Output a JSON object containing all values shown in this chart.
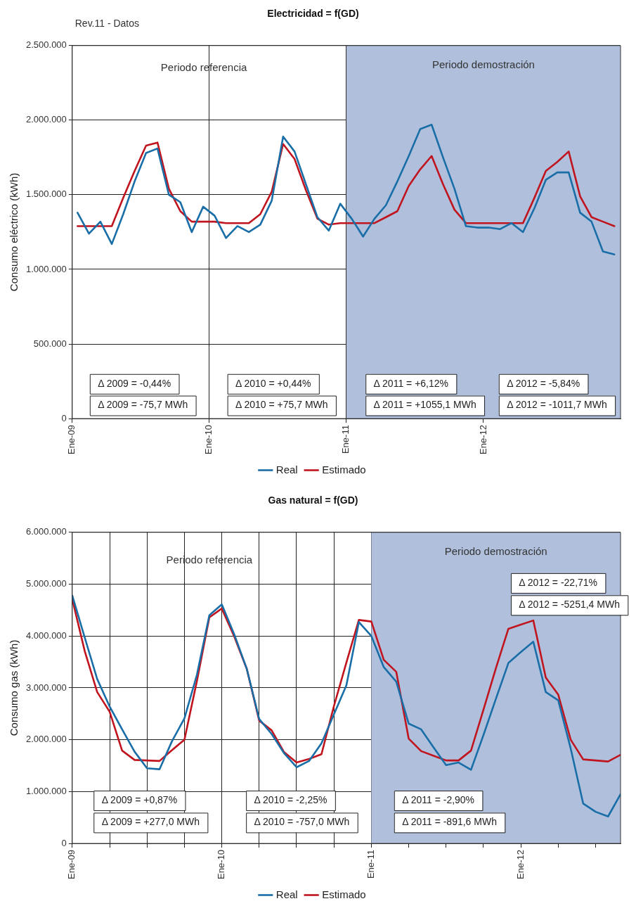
{
  "chart_data": [
    {
      "type": "line",
      "title": "Electricidad = f(GD)",
      "ylabel": "Consumo eléctrico (kWh)",
      "legend": "bottom",
      "grid": true,
      "marker": "none",
      "line_style": "solid",
      "x": [
        "2009-01-15",
        "2009-02-15",
        "2009-03-15",
        "2009-04-15",
        "2009-05-15",
        "2009-06-15",
        "2009-07-15",
        "2009-08-15",
        "2009-09-15",
        "2009-10-15",
        "2009-11-15",
        "2009-12-15",
        "2010-01-15",
        "2010-02-15",
        "2010-03-15",
        "2010-04-15",
        "2010-05-15",
        "2010-06-15",
        "2010-07-15",
        "2010-08-15",
        "2010-09-15",
        "2010-10-15",
        "2010-11-15",
        "2010-12-15",
        "2011-01-15",
        "2011-02-15",
        "2011-03-15",
        "2011-04-15",
        "2011-05-15",
        "2011-06-15",
        "2011-07-15",
        "2011-08-15",
        "2011-09-15",
        "2011-10-15",
        "2011-11-15",
        "2011-12-15",
        "2012-01-15",
        "2012-02-15",
        "2012-03-15",
        "2012-04-15",
        "2012-05-15",
        "2012-06-15",
        "2012-07-15",
        "2012-08-15",
        "2012-09-15",
        "2012-10-15",
        "2012-11-15",
        "2012-12-15"
      ],
      "xlim": [
        "2009-01",
        "2013-01"
      ],
      "xticks": [
        {
          "value": "2009-01",
          "label": "Ene-09"
        },
        {
          "value": "2010-01",
          "label": "Ene-10"
        },
        {
          "value": "2011-01",
          "label": "Ene-11"
        },
        {
          "value": "2012-01",
          "label": "Ene-12"
        }
      ],
      "ylim": [
        0,
        2500000
      ],
      "yticks": [
        0,
        {
          "value": 500000,
          "label": "500.000"
        },
        {
          "value": 1000000,
          "label": "1.000.000"
        },
        {
          "value": 1500000,
          "label": "1.500.000"
        },
        {
          "value": 2000000,
          "label": "2.000.000"
        },
        {
          "value": 2500000,
          "label": "2.500.000"
        }
      ],
      "series": [
        {
          "name": "Real",
          "color": "#1a6ea8",
          "values": [
            1380000,
            1240000,
            1320000,
            1170000,
            1370000,
            1590000,
            1780000,
            1810000,
            1500000,
            1450000,
            1250000,
            1420000,
            1360000,
            1210000,
            1290000,
            1250000,
            1300000,
            1460000,
            1890000,
            1790000,
            1570000,
            1350000,
            1260000,
            1440000,
            1340000,
            1220000,
            1340000,
            1430000,
            1590000,
            1760000,
            1940000,
            1970000,
            1750000,
            1540000,
            1290000,
            1280000,
            1280000,
            1270000,
            1310000,
            1250000,
            1410000,
            1600000,
            1650000,
            1650000,
            1380000,
            1320000,
            1120000,
            1100000
          ]
        },
        {
          "name": "Estimado",
          "color": "#c0141e",
          "values": [
            1290000,
            1290000,
            1290000,
            1290000,
            1480000,
            1660000,
            1830000,
            1850000,
            1540000,
            1390000,
            1320000,
            1320000,
            1320000,
            1310000,
            1310000,
            1310000,
            1370000,
            1520000,
            1840000,
            1740000,
            1530000,
            1340000,
            1300000,
            1310000,
            1310000,
            1310000,
            1310000,
            1350000,
            1390000,
            1560000,
            1670000,
            1760000,
            1570000,
            1400000,
            1310000,
            1310000,
            1310000,
            1310000,
            1310000,
            1310000,
            1480000,
            1660000,
            1720000,
            1790000,
            1490000,
            1350000,
            1320000,
            1290000
          ]
        }
      ],
      "bands": [
        {
          "axis": "x",
          "from": "2011-01",
          "to": "2013-01",
          "label": "Periodo demostración",
          "color": "#b0c0dc"
        }
      ],
      "annotations": [
        "Rev.11 - Datos",
        "Periodo referencia",
        "Δ 2009 = -0,44%",
        "Δ 2009 = -75,7 MWh",
        "Δ 2010 = +0,44%",
        "Δ 2010 = +75,7 MWh",
        "Δ 2011 = +6,12%",
        "Δ 2011 = +1055,1 MWh",
        "Δ 2012 = -5,84%",
        "Δ 2012 = -1011,7 MWh"
      ]
    },
    {
      "type": "line",
      "title": "Gas natural = f(GD)",
      "ylabel": "Consumo gas (kWh)",
      "legend": "bottom",
      "grid": true,
      "marker": "none",
      "line_style": "solid",
      "x": [
        "2009-01",
        "2009-02",
        "2009-03",
        "2009-04",
        "2009-05",
        "2009-06",
        "2009-07",
        "2009-08",
        "2009-09",
        "2009-10",
        "2009-11",
        "2009-12",
        "2010-01",
        "2010-02",
        "2010-03",
        "2010-04",
        "2010-05",
        "2010-06",
        "2010-07",
        "2010-08",
        "2010-09",
        "2010-10",
        "2010-11",
        "2010-12",
        "2011-01",
        "2011-02",
        "2011-03",
        "2011-04",
        "2011-05",
        "2011-06",
        "2011-07",
        "2011-08",
        "2011-09",
        "2011-10",
        "2011-11",
        "2011-12",
        "2012-01",
        "2012-02",
        "2012-03",
        "2012-04",
        "2012-05",
        "2012-06",
        "2012-07",
        "2012-08",
        "2012-09"
      ],
      "xlim": [
        "2009-01",
        "2012-09"
      ],
      "xticks": [
        {
          "value": "2009-01",
          "label": "Ene-09"
        },
        {
          "value": "2009-04",
          "label": null
        },
        {
          "value": "2009-07",
          "label": null
        },
        {
          "value": "2009-10",
          "label": null
        },
        {
          "value": "2010-01",
          "label": "Ene-10"
        },
        {
          "value": "2010-04",
          "label": null
        },
        {
          "value": "2010-07",
          "label": null
        },
        {
          "value": "2010-10",
          "label": null
        },
        {
          "value": "2011-01",
          "label": "Ene-11"
        },
        {
          "value": "2011-04",
          "label": null
        },
        {
          "value": "2011-07",
          "label": null
        },
        {
          "value": "2011-10",
          "label": null
        },
        {
          "value": "2012-01",
          "label": "Ene-12"
        },
        {
          "value": "2012-04",
          "label": null
        },
        {
          "value": "2012-07",
          "label": null
        }
      ],
      "ylim": [
        0,
        6000000
      ],
      "yticks": [
        0,
        {
          "value": 1000000,
          "label": "1.000.000"
        },
        {
          "value": 2000000,
          "label": "2.000.000"
        },
        {
          "value": 3000000,
          "label": "3.000.000"
        },
        {
          "value": 4000000,
          "label": "4.000.000"
        },
        {
          "value": 5000000,
          "label": "5.000.000"
        },
        {
          "value": 6000000,
          "label": "6.000.000"
        }
      ],
      "series": [
        {
          "name": "Real",
          "color": "#1a6ea8",
          "values": [
            4780000,
            3970000,
            3170000,
            2640000,
            2200000,
            1770000,
            1450000,
            1430000,
            1970000,
            2410000,
            3250000,
            4400000,
            4610000,
            4030000,
            3370000,
            2400000,
            2110000,
            1740000,
            1470000,
            1590000,
            1930000,
            2490000,
            3050000,
            4270000,
            4000000,
            3400000,
            3120000,
            2310000,
            2200000,
            1850000,
            1510000,
            1560000,
            1420000,
            2090000,
            2790000,
            3480000,
            3690000,
            3890000,
            2920000,
            2760000,
            1830000,
            770000,
            610000,
            520000,
            950000
          ]
        },
        {
          "name": "Estimado",
          "color": "#c0141e",
          "values": [
            4710000,
            3710000,
            2920000,
            2540000,
            1790000,
            1610000,
            1600000,
            1590000,
            1800000,
            2000000,
            3130000,
            4360000,
            4530000,
            3990000,
            3370000,
            2370000,
            2180000,
            1760000,
            1560000,
            1630000,
            1720000,
            2650000,
            3490000,
            4310000,
            4280000,
            3540000,
            3310000,
            2020000,
            1780000,
            1690000,
            1600000,
            1600000,
            1790000,
            2580000,
            3380000,
            4140000,
            4220000,
            4300000,
            3200000,
            2870000,
            2000000,
            1620000,
            1600000,
            1580000,
            1710000
          ]
        }
      ],
      "bands": [
        {
          "axis": "x",
          "from": "2011-01",
          "to": "2012-09",
          "label": "Periodo demostración",
          "color": "#b0c0dc"
        }
      ],
      "annotations": [
        "Periodo referencia",
        "Δ 2009 = +0,87%",
        "Δ 2009 = +277,0 MWh",
        "Δ 2010 = -2,25%",
        "Δ 2010 = -757,0 MWh",
        "Δ 2011 = -2,90%",
        "Δ 2011 = -891,6 MWh",
        "Δ 2012 = -22,71%",
        "Δ 2012 = -5251,4 MWh"
      ]
    }
  ]
}
